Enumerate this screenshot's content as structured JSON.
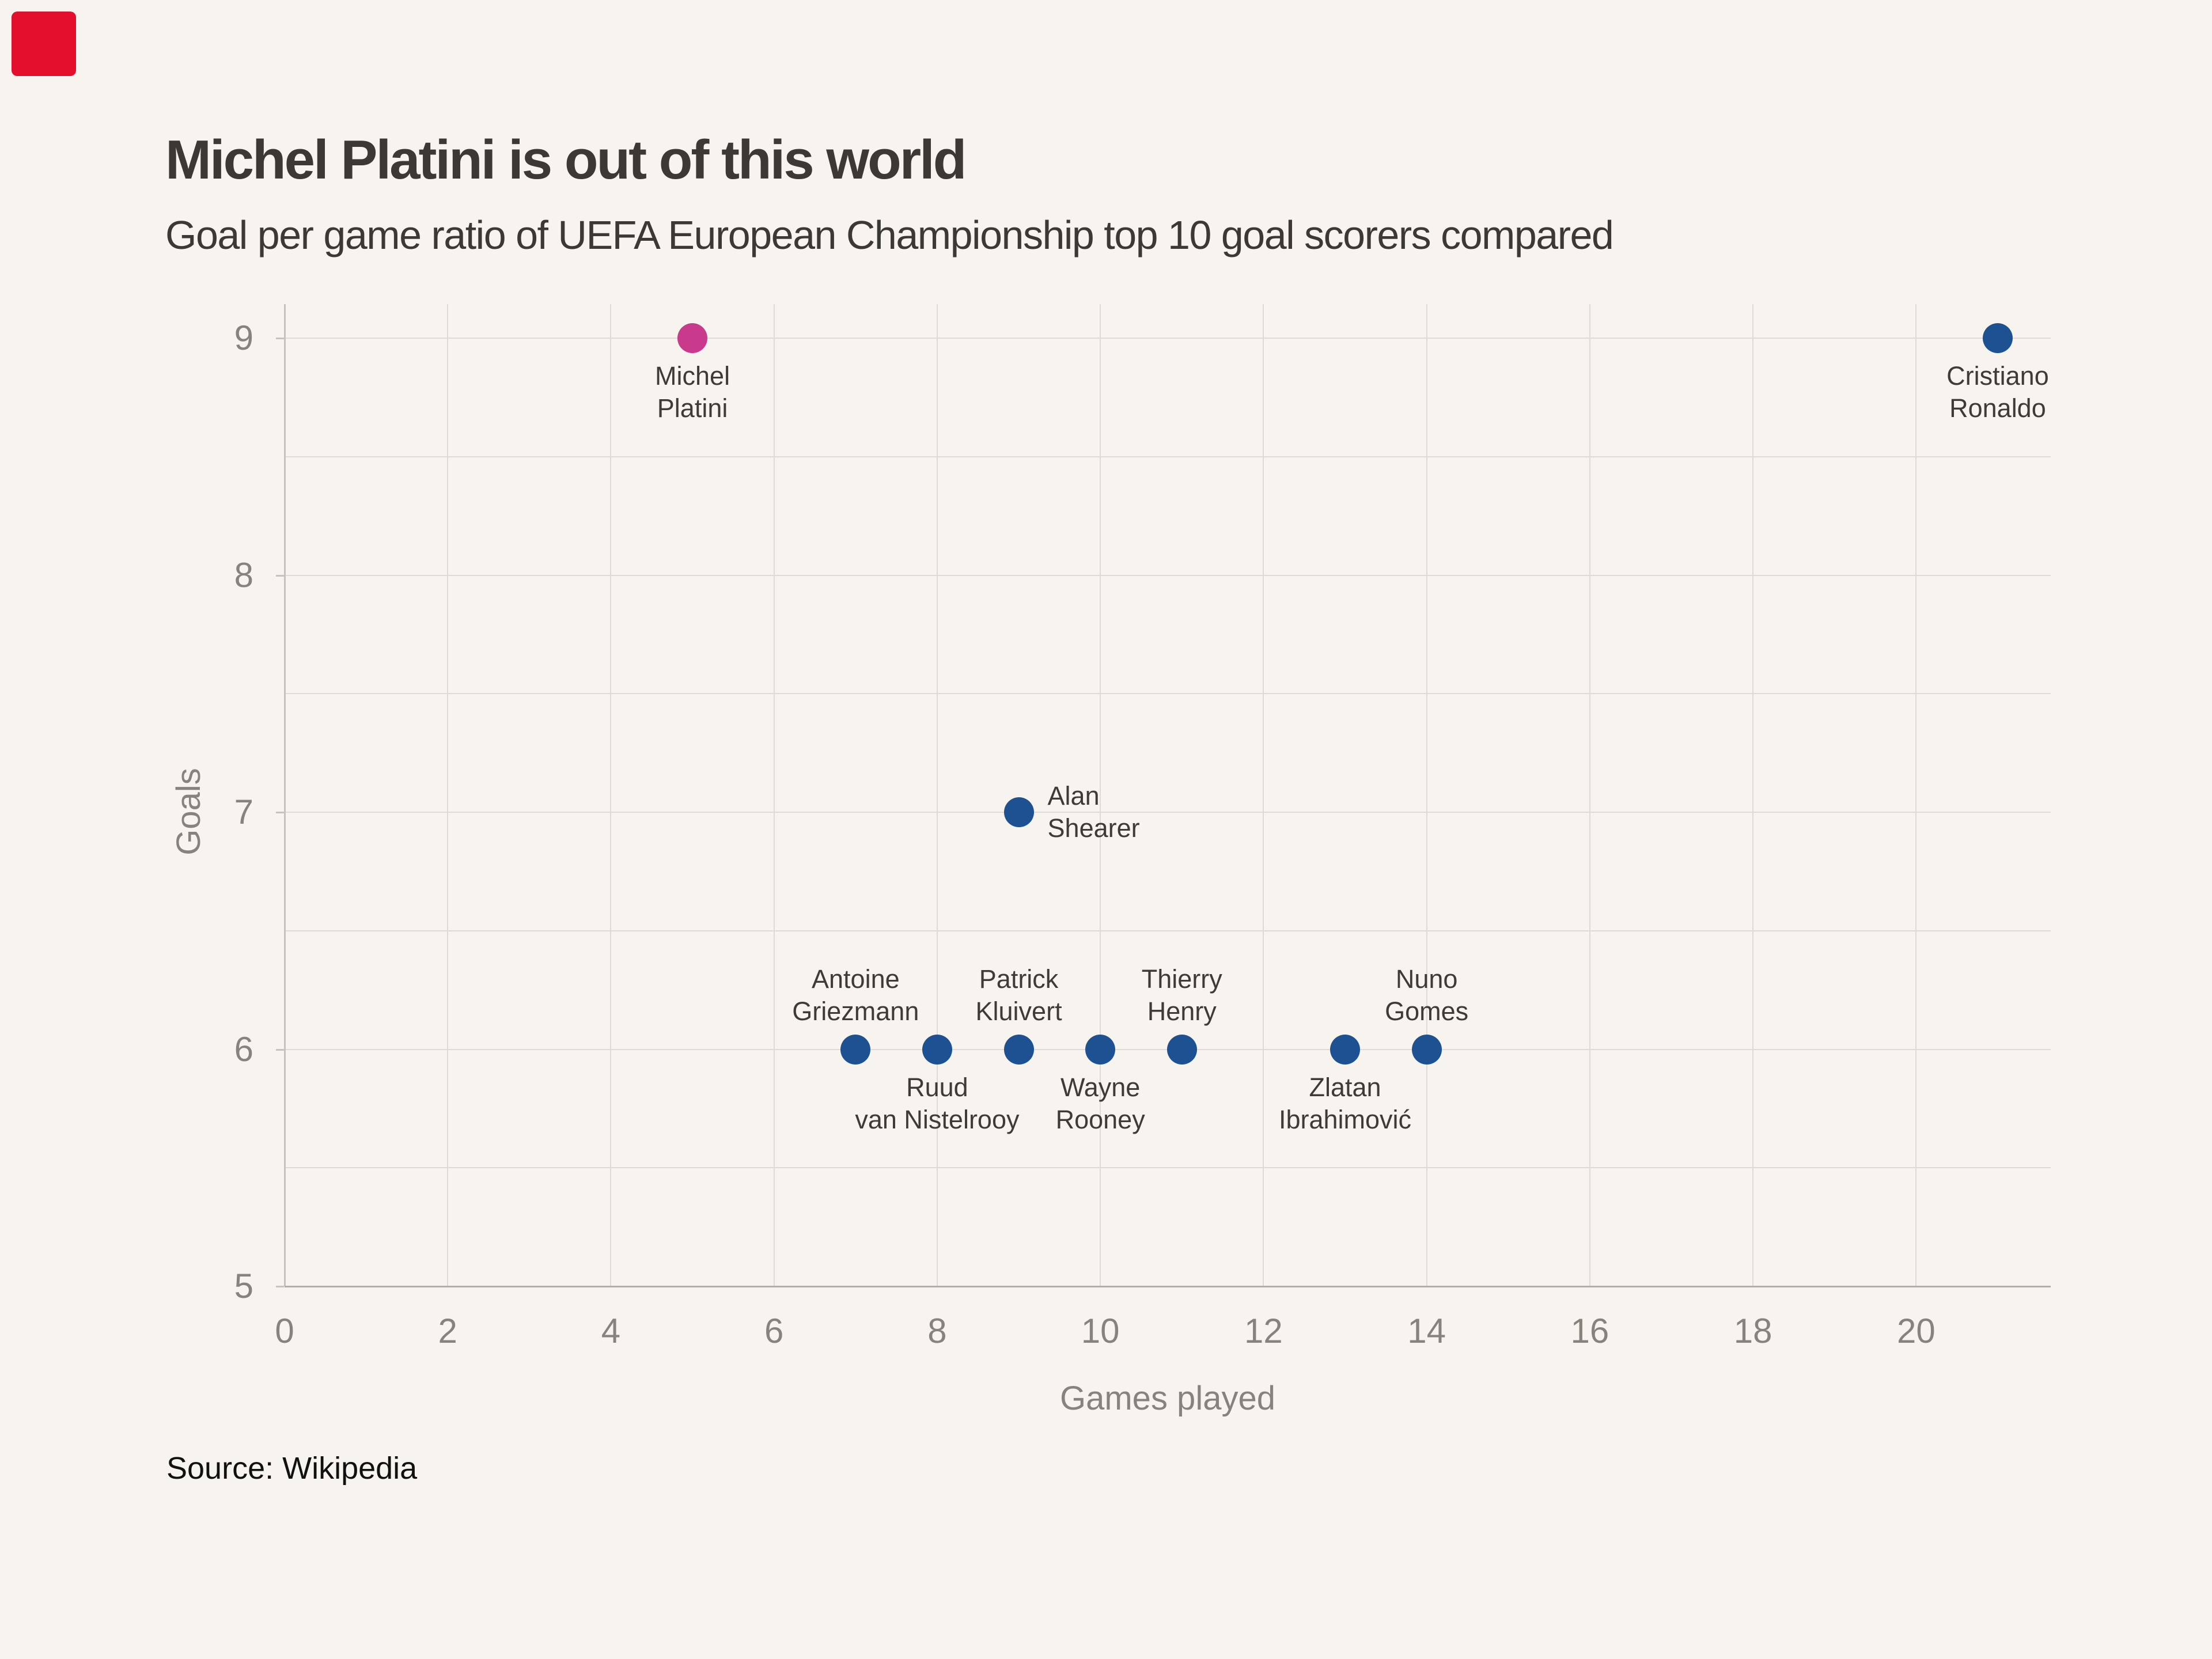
{
  "page": {
    "background": "#f7f3ef",
    "corner_marker_color": "#e30f2d"
  },
  "header": {
    "title": "Michel Platini is out of this world",
    "subtitle": "Goal per game ratio of UEFA European Championship top 10 goal scorers compared"
  },
  "footer": {
    "source": "Source: Wikipedia"
  },
  "chart_data": {
    "type": "scatter",
    "title": "Michel Platini is out of this world",
    "subtitle": "Goal per game ratio of UEFA European Championship top 10 goal scorers compared",
    "xlabel": "Games played",
    "ylabel": "Goals",
    "xlim": [
      0,
      21.65
    ],
    "ylim": [
      5,
      9.144
    ],
    "x_ticks": [
      0,
      2,
      4,
      6,
      8,
      10,
      12,
      14,
      16,
      18,
      20
    ],
    "y_ticks": [
      9,
      8,
      7,
      6,
      5
    ],
    "y_grid_step": 0.5,
    "grid": true,
    "legend": "none",
    "palette": {
      "default": "#1e5191",
      "highlight": "#c93a8c"
    },
    "points": [
      {
        "name": "Michel Platini",
        "label_lines": [
          "Michel",
          "Platini"
        ],
        "x": 5,
        "y": 9,
        "color": "highlight",
        "label_pos": "below"
      },
      {
        "name": "Cristiano Ronaldo",
        "label_lines": [
          "Cristiano",
          "Ronaldo"
        ],
        "x": 21,
        "y": 9,
        "color": "default",
        "label_pos": "below"
      },
      {
        "name": "Alan Shearer",
        "label_lines": [
          "Alan",
          "Shearer"
        ],
        "x": 9,
        "y": 7,
        "color": "default",
        "label_pos": "right"
      },
      {
        "name": "Antoine Griezmann",
        "label_lines": [
          "Antoine",
          "Griezmann"
        ],
        "x": 7,
        "y": 6,
        "color": "default",
        "label_pos": "above"
      },
      {
        "name": "Ruud van Nistelrooy",
        "label_lines": [
          "Ruud",
          "van Nistelrooy"
        ],
        "x": 8,
        "y": 6,
        "color": "default",
        "label_pos": "below"
      },
      {
        "name": "Patrick Kluivert",
        "label_lines": [
          "Patrick",
          "Kluivert"
        ],
        "x": 9,
        "y": 6,
        "color": "default",
        "label_pos": "above"
      },
      {
        "name": "Wayne Rooney",
        "label_lines": [
          "Wayne",
          "Rooney"
        ],
        "x": 10,
        "y": 6,
        "color": "default",
        "label_pos": "below"
      },
      {
        "name": "Thierry Henry",
        "label_lines": [
          "Thierry",
          "Henry"
        ],
        "x": 11,
        "y": 6,
        "color": "default",
        "label_pos": "above"
      },
      {
        "name": "Zlatan Ibrahimović",
        "label_lines": [
          "Zlatan",
          "Ibrahimović"
        ],
        "x": 13,
        "y": 6,
        "color": "default",
        "label_pos": "below"
      },
      {
        "name": "Nuno Gomes",
        "label_lines": [
          "Nuno",
          "Gomes"
        ],
        "x": 14,
        "y": 6,
        "color": "default",
        "label_pos": "above"
      }
    ]
  }
}
